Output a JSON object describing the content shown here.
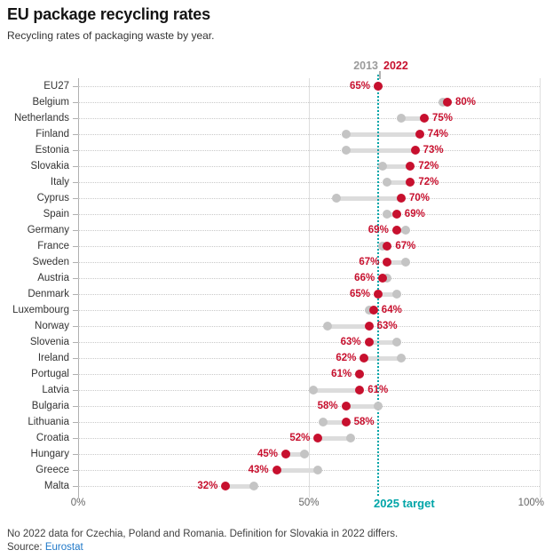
{
  "header": {
    "title": "EU package recycling rates",
    "subtitle": "Recycling rates of packaging waste by year."
  },
  "legend": {
    "year_2013": "2013",
    "year_2022": "2022"
  },
  "colors": {
    "red": "#c7102e",
    "gray_dot": "#c4c4c4",
    "connector": "#dcdcdc",
    "teal": "#00a5a8",
    "grid_dotted": "#c9c9c9",
    "axis_line": "#b0b0b0",
    "link_blue": "#1f78c8"
  },
  "axis": {
    "ticks": [
      "0%",
      "50%",
      "100%"
    ],
    "target_label": "2025 target"
  },
  "chart_data": {
    "type": "scatter",
    "variant": "dumbbell",
    "orientation": "horizontal",
    "title": "EU package recycling rates",
    "subtitle": "Recycling rates of packaging waste by year.",
    "xlabel": "",
    "ylabel": "",
    "xlim": [
      0,
      100
    ],
    "x_tick_labels": [
      "0%",
      "50%",
      "100%"
    ],
    "grid": "dotted horizontal row guides, solid verticals at 50% and 100%",
    "legend_entries": [
      "2013",
      "2022"
    ],
    "legend_position": "top",
    "value_label_format": "{value}%",
    "categories": [
      "EU27",
      "Belgium",
      "Netherlands",
      "Finland",
      "Estonia",
      "Slovakia",
      "Italy",
      "Cyprus",
      "Spain",
      "Germany",
      "France",
      "Sweden",
      "Austria",
      "Denmark",
      "Luxembourg",
      "Norway",
      "Slovenia",
      "Ireland",
      "Portugal",
      "Latvia",
      "Bulgaria",
      "Lithuania",
      "Croatia",
      "Hungary",
      "Greece",
      "Malta"
    ],
    "series": [
      {
        "name": "2013",
        "color": "#c4c4c4",
        "values": [
          65,
          79,
          70,
          58,
          58,
          66,
          67,
          56,
          67,
          71,
          66,
          71,
          67,
          69,
          63,
          54,
          69,
          70,
          61,
          51,
          65,
          53,
          59,
          49,
          52,
          38
        ]
      },
      {
        "name": "2022",
        "color": "#c7102e",
        "values": [
          65,
          80,
          75,
          74,
          73,
          72,
          72,
          70,
          69,
          69,
          67,
          67,
          66,
          65,
          64,
          63,
          63,
          62,
          61,
          61,
          58,
          58,
          52,
          45,
          43,
          32
        ]
      }
    ],
    "target_line": {
      "label": "2025 target",
      "value": 65,
      "color": "#00a5a8",
      "style": "dotted vertical"
    }
  },
  "footer": {
    "note": "No 2022 data for Czechia, Poland and Romania. Definition for Slovakia in 2022 differs.",
    "source_prefix": "Source: ",
    "source_link": "Eurostat"
  }
}
